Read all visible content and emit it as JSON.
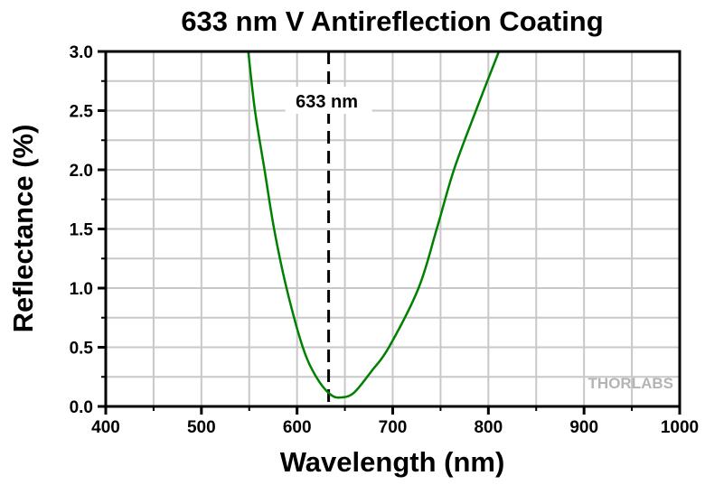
{
  "chart_data": {
    "type": "line",
    "title": "633 nm V Antireflection Coating",
    "xlabel": "Wavelength (nm)",
    "ylabel": "Reflectance (%)",
    "xlim": [
      400,
      1000
    ],
    "ylim": [
      0,
      3.0
    ],
    "xticks": [
      "400",
      "500",
      "600",
      "700",
      "800",
      "900",
      "1000"
    ],
    "yticks": [
      "0.0",
      "0.5",
      "1.0",
      "1.5",
      "2.0",
      "2.5",
      "3.0"
    ],
    "grid": true,
    "annotation": {
      "label": "633 nm",
      "x": 633
    },
    "watermark": "THORLABS",
    "series": [
      {
        "name": "Reflectance",
        "color": "#008000",
        "x": [
          549,
          556,
          566,
          576,
          589,
          606,
          620,
          635,
          647,
          660,
          678,
          696,
          727,
          746,
          764,
          787,
          811
        ],
        "y": [
          3.0,
          2.5,
          2.0,
          1.5,
          1.0,
          0.5,
          0.25,
          0.1,
          0.076,
          0.12,
          0.3,
          0.5,
          1.0,
          1.5,
          2.0,
          2.5,
          3.0
        ]
      }
    ]
  }
}
